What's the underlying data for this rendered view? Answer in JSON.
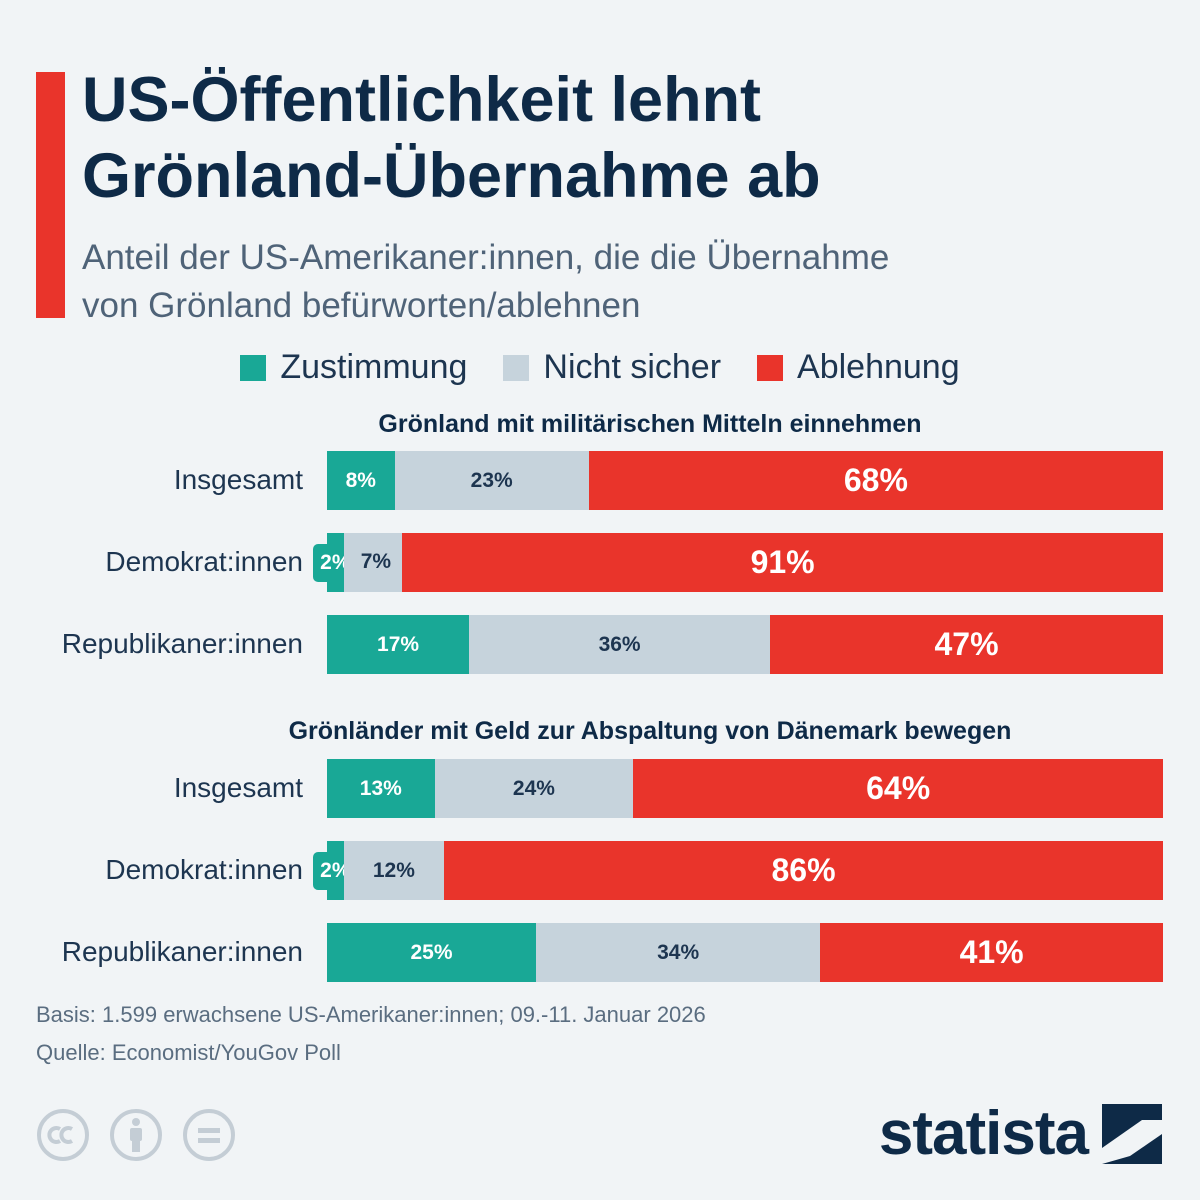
{
  "header": {
    "title_line1": "US-Öffentlichkeit lehnt",
    "title_line2": "Grönland-Übernahme ab",
    "subtitle_line1": "Anteil der US-Amerikaner:innen, die die Übernahme",
    "subtitle_line2": "von Grönland befürworten/ablehnen"
  },
  "legend": [
    {
      "label": "Zustimmung",
      "color": "#19a896"
    },
    {
      "label": "Nicht sicher",
      "color": "#c6d3dc"
    },
    {
      "label": "Ablehnung",
      "color": "#e9342b"
    }
  ],
  "chart_data": {
    "type": "bar",
    "orientation": "horizontal",
    "stacked": true,
    "unit": "%",
    "series_names": [
      "Zustimmung",
      "Nicht sicher",
      "Ablehnung"
    ],
    "groups": [
      {
        "title": "Grönland mit militärischen Mitteln einnehmen",
        "rows": [
          {
            "label": "Insgesamt",
            "values": [
              8,
              23,
              68
            ]
          },
          {
            "label": "Demokrat:innen",
            "values": [
              2,
              7,
              91
            ]
          },
          {
            "label": "Republikaner:innen",
            "values": [
              17,
              36,
              47
            ]
          }
        ]
      },
      {
        "title": "Grönländer mit Geld zur Abspaltung von Dänemark bewegen",
        "rows": [
          {
            "label": "Insgesamt",
            "values": [
              13,
              24,
              64
            ]
          },
          {
            "label": "Demokrat:innen",
            "values": [
              2,
              12,
              86
            ]
          },
          {
            "label": "Republikaner:innen",
            "values": [
              25,
              34,
              41
            ]
          }
        ]
      }
    ]
  },
  "footer": {
    "basis": "Basis: 1.599 erwachsene US-Amerikaner:innen; 09.-11. Januar 2026",
    "source": "Quelle: Economist/YouGov Poll"
  },
  "brand": {
    "name": "statista"
  },
  "icons": [
    "cc-icon",
    "attribution-icon",
    "no-derivatives-icon",
    "statista-logo-icon"
  ]
}
